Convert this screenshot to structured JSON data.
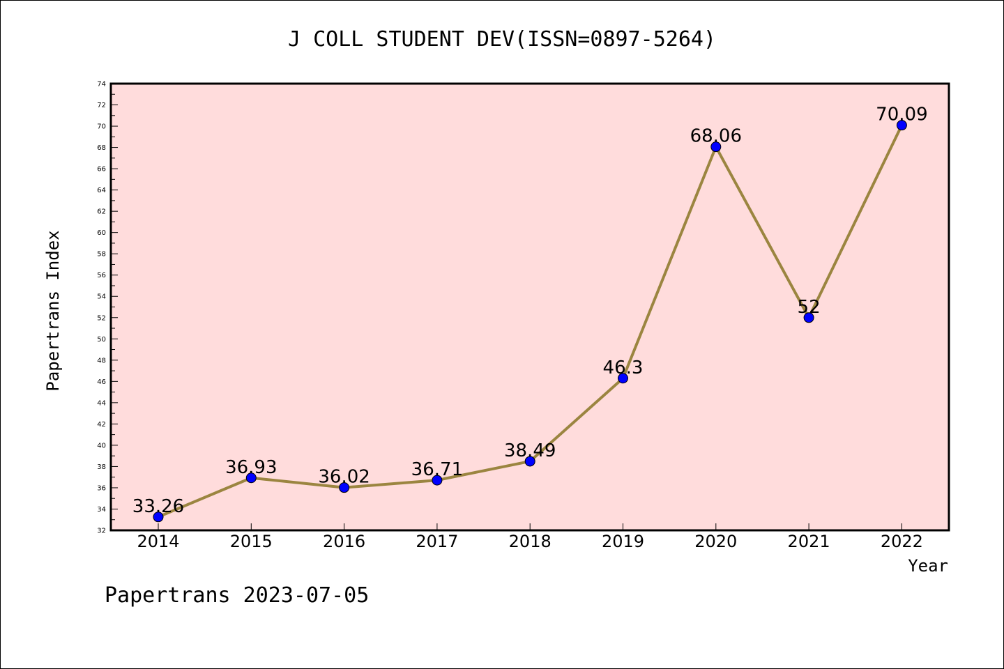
{
  "chart_data": {
    "type": "line",
    "title": "J COLL STUDENT DEV(ISSN=0897-5264)",
    "xlabel": "Year",
    "ylabel": "Papertrans Index",
    "categories": [
      "2014",
      "2015",
      "2016",
      "2017",
      "2018",
      "2019",
      "2020",
      "2021",
      "2022"
    ],
    "series": [
      {
        "values": [
          33.26,
          36.93,
          36.02,
          36.71,
          38.49,
          46.3,
          68.06,
          52,
          70.09
        ]
      }
    ],
    "data_labels": [
      "33.26",
      "36.93",
      "36.02",
      "36.71",
      "38.49",
      "46.3",
      "68.06",
      "52",
      "70.09"
    ],
    "ylim": [
      32,
      74
    ],
    "yticks": [
      "32",
      "34",
      "36",
      "38",
      "40",
      "42",
      "44",
      "46",
      "48",
      "50",
      "52",
      "54",
      "56",
      "58",
      "60",
      "62",
      "64",
      "66",
      "68",
      "70",
      "72",
      "74"
    ],
    "grid": false,
    "plot_background": "#ffdcdc",
    "line_color": "#9b8540",
    "marker_color": "#0000ff"
  },
  "footer": "Papertrans 2023-07-05"
}
